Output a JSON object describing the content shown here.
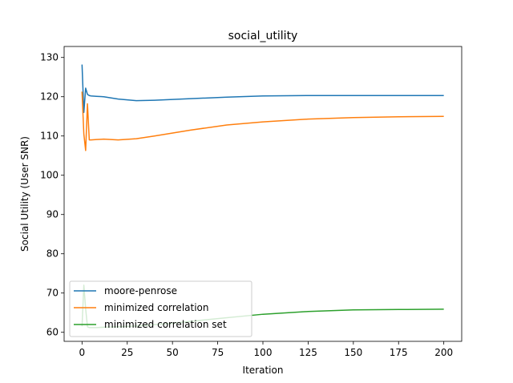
{
  "chart_data": {
    "type": "line",
    "title": "social_utility",
    "xlabel": "Iteration",
    "ylabel": "Social Utility (User SNR)",
    "xlim": [
      -9.9,
      209.9
    ],
    "ylim": [
      57.7,
      132.8
    ],
    "xticks": [
      0,
      25,
      50,
      75,
      100,
      125,
      150,
      175,
      200
    ],
    "yticks": [
      60,
      70,
      80,
      90,
      100,
      110,
      120,
      130
    ],
    "legend_position": "lower-left",
    "grid": false,
    "series": [
      {
        "name": "moore-penrose",
        "color": "#1f77b4",
        "x": [
          0,
          1,
          2,
          3,
          4,
          5,
          8,
          12,
          20,
          30,
          40,
          60,
          80,
          100,
          125,
          150,
          175,
          200
        ],
        "y": [
          128.2,
          116.0,
          122.2,
          120.6,
          120.3,
          120.2,
          120.1,
          120.0,
          119.4,
          119.0,
          119.1,
          119.5,
          119.9,
          120.2,
          120.3,
          120.3,
          120.3,
          120.3
        ]
      },
      {
        "name": "minimized correlation",
        "color": "#ff7f0e",
        "x": [
          0,
          1,
          2,
          3,
          4,
          5,
          8,
          12,
          20,
          30,
          40,
          60,
          80,
          100,
          125,
          150,
          175,
          200
        ],
        "y": [
          121.3,
          110.5,
          106.3,
          118.2,
          109.0,
          109.0,
          109.1,
          109.2,
          109.0,
          109.3,
          110.0,
          111.5,
          112.8,
          113.6,
          114.3,
          114.7,
          114.9,
          115.0
        ]
      },
      {
        "name": "minimized correlation set",
        "color": "#2ca02c",
        "x": [
          0,
          1,
          2,
          3,
          4,
          8,
          12,
          20,
          30,
          50,
          75,
          100,
          125,
          150,
          175,
          200
        ],
        "y": [
          61.5,
          72.0,
          66.0,
          61.4,
          61.2,
          61.2,
          61.3,
          61.4,
          61.6,
          62.3,
          63.5,
          64.6,
          65.3,
          65.7,
          65.8,
          65.9
        ]
      }
    ]
  }
}
